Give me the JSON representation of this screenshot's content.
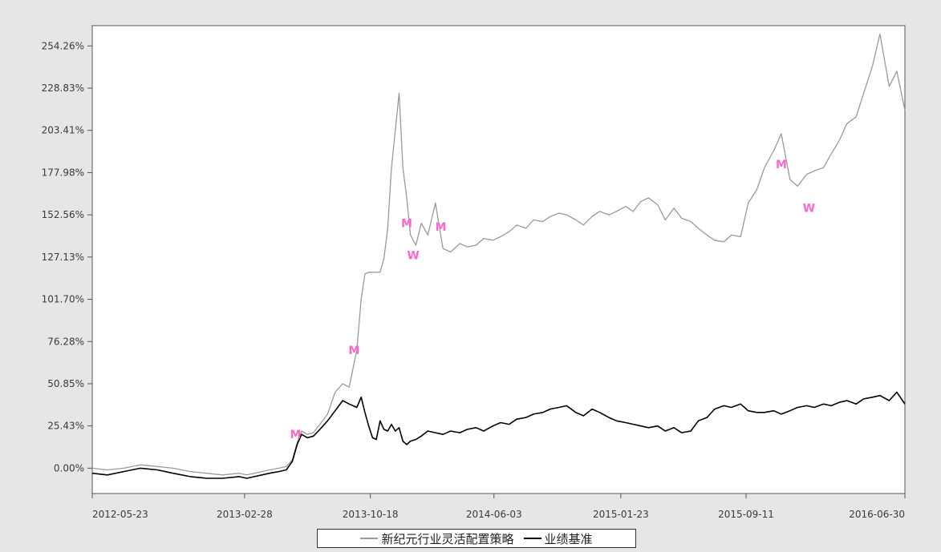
{
  "chart_data": {
    "type": "line",
    "title": "",
    "xlabel": "",
    "ylabel": "",
    "y_unit": "%",
    "yticks": [
      0,
      25,
      50,
      75,
      100,
      125,
      150,
      175,
      200,
      225,
      250
    ],
    "ytick_labels": [
      "0.00%",
      "25.43%",
      "50.85%",
      "76.28%",
      "101.70%",
      "127.13%",
      "152.56%",
      "177.98%",
      "203.41%",
      "228.83%",
      "254.26%"
    ],
    "ylim": [
      -15,
      262
    ],
    "x_range": [
      "2012-05-23",
      "2016-06-30"
    ],
    "xtick_labels": [
      "2012-05-23",
      "2013-02-28",
      "2013-10-18",
      "2014-06-03",
      "2015-01-23",
      "2015-09-11",
      "2016-06-30"
    ],
    "grid": false,
    "legend": {
      "position": "bottom"
    },
    "series": [
      {
        "name": "新纪元行业灵活配置策略",
        "color": "#9a9a9a",
        "x": [
          "2012-05-23",
          "2012-06-20",
          "2012-07-20",
          "2012-08-20",
          "2012-09-20",
          "2012-10-19",
          "2012-11-20",
          "2012-12-20",
          "2013-01-18",
          "2013-02-18",
          "2013-03-04",
          "2013-03-18",
          "2013-04-01",
          "2013-04-15",
          "2013-05-02",
          "2013-05-16",
          "2013-05-27",
          "2013-06-05",
          "2013-06-13",
          "2013-06-24",
          "2013-07-05",
          "2013-07-17",
          "2013-07-31",
          "2013-08-14",
          "2013-08-28",
          "2013-09-09",
          "2013-09-23",
          "2013-10-01",
          "2013-10-08",
          "2013-10-15",
          "2013-10-22",
          "2013-10-29",
          "2013-11-05",
          "2013-11-12",
          "2013-11-19",
          "2013-11-26",
          "2013-12-03",
          "2013-12-10",
          "2013-12-17",
          "2013-12-24",
          "2013-12-31",
          "2014-01-10",
          "2014-01-20",
          "2014-02-01",
          "2014-02-15",
          "2014-03-01",
          "2014-03-15",
          "2014-04-01",
          "2014-04-15",
          "2014-05-01",
          "2014-05-15",
          "2014-06-01",
          "2014-06-15",
          "2014-07-01",
          "2014-07-15",
          "2014-08-01",
          "2014-08-15",
          "2014-09-01",
          "2014-09-15",
          "2014-10-01",
          "2014-10-15",
          "2014-11-01",
          "2014-11-15",
          "2014-12-01",
          "2014-12-15",
          "2015-01-01",
          "2015-01-15",
          "2015-02-01",
          "2015-02-15",
          "2015-03-01",
          "2015-03-15",
          "2015-04-01",
          "2015-04-15",
          "2015-05-01",
          "2015-05-15",
          "2015-06-01",
          "2015-06-15",
          "2015-07-01",
          "2015-07-15",
          "2015-08-01",
          "2015-08-15",
          "2015-09-01",
          "2015-09-15",
          "2015-10-01",
          "2015-10-15",
          "2015-11-01",
          "2015-11-15",
          "2015-12-01",
          "2015-12-15",
          "2016-01-01",
          "2016-01-15",
          "2016-02-01",
          "2016-02-15",
          "2016-03-01",
          "2016-03-15",
          "2016-04-01",
          "2016-04-15",
          "2016-05-01",
          "2016-05-15",
          "2016-06-01",
          "2016-06-15",
          "2016-06-30"
        ],
        "values": [
          0,
          -1,
          0,
          2,
          1,
          0,
          -2,
          -3,
          -4,
          -3,
          -4,
          -3,
          -2,
          -1,
          0,
          1,
          5,
          15,
          22,
          20,
          21,
          26,
          32,
          45,
          50,
          48,
          70,
          100,
          115,
          116,
          116,
          116,
          116,
          124,
          142,
          178,
          200,
          222,
          178,
          160,
          138,
          132,
          145,
          138,
          157,
          130,
          128,
          133,
          131,
          132,
          136,
          135,
          137,
          140,
          144,
          142,
          147,
          146,
          149,
          151,
          150,
          147,
          144,
          149,
          152,
          150,
          152,
          155,
          152,
          158,
          160,
          156,
          147,
          154,
          148,
          146,
          142,
          138,
          135,
          134,
          138,
          137,
          157,
          165,
          178,
          188,
          198,
          171,
          167,
          174,
          176,
          178,
          186,
          194,
          204,
          208,
          222,
          238,
          257,
          226,
          235,
          212
        ]
      },
      {
        "name": "业绩基准",
        "color": "#000000",
        "x": [
          "2012-05-23",
          "2012-06-20",
          "2012-07-20",
          "2012-08-20",
          "2012-09-20",
          "2012-10-19",
          "2012-11-20",
          "2012-12-20",
          "2013-01-18",
          "2013-02-18",
          "2013-03-04",
          "2013-03-18",
          "2013-04-01",
          "2013-04-15",
          "2013-05-02",
          "2013-05-16",
          "2013-05-27",
          "2013-06-05",
          "2013-06-13",
          "2013-06-24",
          "2013-07-05",
          "2013-07-17",
          "2013-07-31",
          "2013-08-14",
          "2013-08-28",
          "2013-09-09",
          "2013-09-23",
          "2013-10-01",
          "2013-10-08",
          "2013-10-15",
          "2013-10-22",
          "2013-10-29",
          "2013-11-05",
          "2013-11-12",
          "2013-11-19",
          "2013-11-26",
          "2013-12-03",
          "2013-12-10",
          "2013-12-17",
          "2013-12-24",
          "2013-12-31",
          "2014-01-10",
          "2014-01-20",
          "2014-02-01",
          "2014-02-15",
          "2014-03-01",
          "2014-03-15",
          "2014-04-01",
          "2014-04-15",
          "2014-05-01",
          "2014-05-15",
          "2014-06-01",
          "2014-06-15",
          "2014-07-01",
          "2014-07-15",
          "2014-08-01",
          "2014-08-15",
          "2014-09-01",
          "2014-09-15",
          "2014-10-01",
          "2014-10-15",
          "2014-11-01",
          "2014-11-15",
          "2014-12-01",
          "2014-12-15",
          "2015-01-01",
          "2015-01-15",
          "2015-02-01",
          "2015-02-15",
          "2015-03-01",
          "2015-03-15",
          "2015-04-01",
          "2015-04-15",
          "2015-05-01",
          "2015-05-15",
          "2015-06-01",
          "2015-06-15",
          "2015-07-01",
          "2015-07-15",
          "2015-08-01",
          "2015-08-15",
          "2015-09-01",
          "2015-09-15",
          "2015-10-01",
          "2015-10-15",
          "2015-11-01",
          "2015-11-15",
          "2015-12-01",
          "2015-12-15",
          "2016-01-01",
          "2016-01-15",
          "2016-02-01",
          "2016-02-15",
          "2016-03-01",
          "2016-03-15",
          "2016-04-01",
          "2016-04-15",
          "2016-05-01",
          "2016-05-15",
          "2016-06-01",
          "2016-06-15",
          "2016-06-30"
        ],
        "values": [
          -3,
          -4,
          -2,
          0,
          -1,
          -3,
          -5,
          -6,
          -6,
          -5,
          -6,
          -5,
          -4,
          -3,
          -2,
          -1,
          4,
          14,
          20,
          18,
          19,
          23,
          28,
          34,
          40,
          38,
          36,
          42,
          33,
          25,
          18,
          17,
          28,
          23,
          22,
          26,
          22,
          24,
          16,
          14,
          16,
          17,
          19,
          22,
          21,
          20,
          22,
          21,
          23,
          24,
          22,
          25,
          27,
          26,
          29,
          30,
          32,
          33,
          35,
          36,
          37,
          33,
          31,
          35,
          33,
          30,
          28,
          27,
          26,
          25,
          24,
          25,
          22,
          24,
          21,
          22,
          28,
          30,
          35,
          37,
          36,
          38,
          34,
          33,
          33,
          34,
          32,
          34,
          36,
          37,
          36,
          38,
          37,
          39,
          40,
          38,
          41,
          42,
          43,
          40,
          45,
          38
        ]
      }
    ],
    "markers": [
      {
        "label": "M",
        "color": "#ff66cc",
        "x": "2013-06-02",
        "y": 20
      },
      {
        "label": "M",
        "color": "#ff66cc",
        "x": "2013-09-18",
        "y": 70
      },
      {
        "label": "M",
        "color": "#ff66cc",
        "x": "2013-12-24",
        "y": 145
      },
      {
        "label": "W",
        "color": "#ff66cc",
        "x": "2014-01-05",
        "y": 126
      },
      {
        "label": "M",
        "color": "#ff66cc",
        "x": "2014-02-25",
        "y": 143
      },
      {
        "label": "M",
        "color": "#ff66cc",
        "x": "2015-11-15",
        "y": 180
      },
      {
        "label": "W",
        "color": "#ff66cc",
        "x": "2016-01-05",
        "y": 154
      }
    ]
  }
}
